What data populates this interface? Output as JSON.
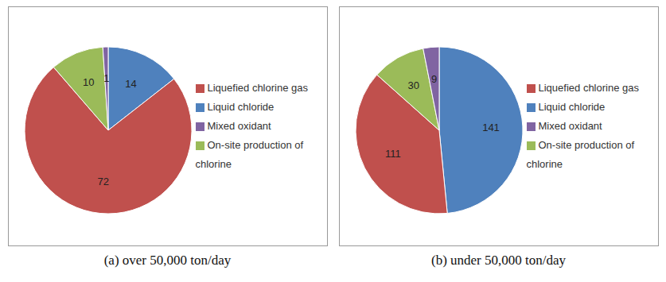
{
  "chart_data": [
    {
      "type": "pie",
      "title": "(a) over 50,000 ton/day",
      "categories": [
        "Liquid chloride",
        "Liquefied chlorine gas",
        "On-site production of chlorine",
        "Mixed oxidant"
      ],
      "values": [
        14,
        72,
        10,
        1
      ],
      "colors": [
        "#4f81bd",
        "#c0504d",
        "#9bbb59",
        "#8064a2"
      ],
      "data_labels": true,
      "legend": "right"
    },
    {
      "type": "pie",
      "title": "(b) under 50,000 ton/day",
      "categories": [
        "Liquid chloride",
        "Liquefied chlorine gas",
        "On-site production of chlorine",
        "Mixed oxidant"
      ],
      "values": [
        141,
        111,
        30,
        9
      ],
      "colors": [
        "#4f81bd",
        "#c0504d",
        "#9bbb59",
        "#8064a2"
      ],
      "data_labels": true,
      "legend": "right"
    }
  ]
}
